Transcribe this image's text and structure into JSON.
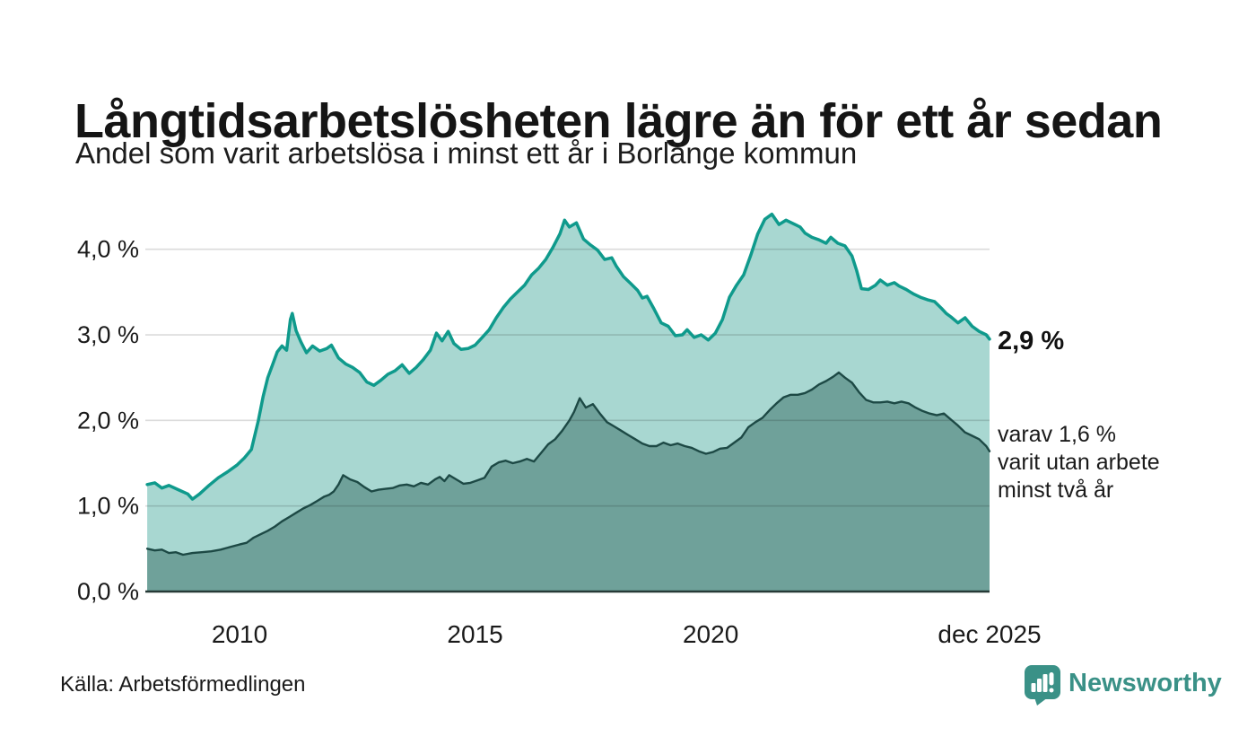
{
  "header": {
    "title": "Långtidsarbetslösheten lägre än för ett år sedan",
    "subtitle": "Andel som varit arbetslösa i minst ett år i Borlänge kommun"
  },
  "annotations": {
    "latest_total": "2,9 %",
    "subset": "varav 1,6 %\nvarit utan arbete\nminst två år"
  },
  "footer": {
    "source": "Källa: Arbetsförmedlingen",
    "brand": "Newsworthy"
  },
  "colors": {
    "line_total": "#0f9a8c",
    "fill_total": "#a8d7d1",
    "line_subset": "#1d4945",
    "fill_subset": "#6fa19a",
    "gridline": "rgba(0,0,0,0.14)",
    "baseline": "#263a37",
    "text": "#1a1a1a",
    "brand_teal": "#3a9187"
  },
  "chart_data": {
    "type": "area",
    "title": "Långtidsarbetslösheten lägre än för ett år sedan",
    "subtitle": "Andel som varit arbetslösa i minst ett år i Borlänge kommun",
    "xlabel": "",
    "ylabel": "",
    "x_range": [
      2008.0,
      2025.92
    ],
    "y_range": [
      0,
      4.49
    ],
    "grid": true,
    "legend_position": "end-labels-right",
    "y_ticks": [
      {
        "v": 0,
        "label": "0,0 %"
      },
      {
        "v": 1,
        "label": "1,0 %"
      },
      {
        "v": 2,
        "label": "2,0 %"
      },
      {
        "v": 3,
        "label": "3,0 %"
      },
      {
        "v": 4,
        "label": "4,0 %"
      }
    ],
    "x_ticks": [
      {
        "x": 2010,
        "label": "2010"
      },
      {
        "x": 2015,
        "label": "2015"
      },
      {
        "x": 2020,
        "label": "2020"
      },
      {
        "x": 2025.92,
        "label": "dec 2025"
      }
    ],
    "series": [
      {
        "name": "Andel som varit arbetslösa i minst ett år",
        "end_label": "2,9 %",
        "points": [
          [
            2008.04,
            1.25
          ],
          [
            2008.2,
            1.27
          ],
          [
            2008.35,
            1.21
          ],
          [
            2008.5,
            1.24
          ],
          [
            2008.7,
            1.19
          ],
          [
            2008.9,
            1.14
          ],
          [
            2009.0,
            1.08
          ],
          [
            2009.15,
            1.14
          ],
          [
            2009.35,
            1.24
          ],
          [
            2009.55,
            1.33
          ],
          [
            2009.75,
            1.4
          ],
          [
            2009.95,
            1.48
          ],
          [
            2010.1,
            1.56
          ],
          [
            2010.25,
            1.66
          ],
          [
            2010.4,
            2.0
          ],
          [
            2010.5,
            2.28
          ],
          [
            2010.6,
            2.5
          ],
          [
            2010.7,
            2.65
          ],
          [
            2010.8,
            2.8
          ],
          [
            2010.9,
            2.87
          ],
          [
            2011.0,
            2.82
          ],
          [
            2011.08,
            3.18
          ],
          [
            2011.12,
            3.25
          ],
          [
            2011.2,
            3.05
          ],
          [
            2011.3,
            2.92
          ],
          [
            2011.42,
            2.79
          ],
          [
            2011.55,
            2.87
          ],
          [
            2011.7,
            2.81
          ],
          [
            2011.85,
            2.84
          ],
          [
            2011.95,
            2.88
          ],
          [
            2012.1,
            2.73
          ],
          [
            2012.25,
            2.66
          ],
          [
            2012.4,
            2.62
          ],
          [
            2012.55,
            2.56
          ],
          [
            2012.7,
            2.45
          ],
          [
            2012.85,
            2.41
          ],
          [
            2013.0,
            2.47
          ],
          [
            2013.15,
            2.54
          ],
          [
            2013.3,
            2.58
          ],
          [
            2013.45,
            2.65
          ],
          [
            2013.6,
            2.55
          ],
          [
            2013.75,
            2.62
          ],
          [
            2013.9,
            2.71
          ],
          [
            2014.05,
            2.82
          ],
          [
            2014.18,
            3.02
          ],
          [
            2014.3,
            2.93
          ],
          [
            2014.43,
            3.04
          ],
          [
            2014.55,
            2.9
          ],
          [
            2014.7,
            2.83
          ],
          [
            2014.85,
            2.84
          ],
          [
            2015.0,
            2.88
          ],
          [
            2015.15,
            2.97
          ],
          [
            2015.3,
            3.06
          ],
          [
            2015.45,
            3.2
          ],
          [
            2015.6,
            3.32
          ],
          [
            2015.75,
            3.42
          ],
          [
            2015.9,
            3.5
          ],
          [
            2016.05,
            3.58
          ],
          [
            2016.2,
            3.7
          ],
          [
            2016.35,
            3.78
          ],
          [
            2016.5,
            3.88
          ],
          [
            2016.65,
            4.02
          ],
          [
            2016.8,
            4.18
          ],
          [
            2016.9,
            4.34
          ],
          [
            2017.0,
            4.26
          ],
          [
            2017.15,
            4.31
          ],
          [
            2017.3,
            4.12
          ],
          [
            2017.45,
            4.05
          ],
          [
            2017.6,
            3.99
          ],
          [
            2017.75,
            3.88
          ],
          [
            2017.9,
            3.9
          ],
          [
            2018.0,
            3.8
          ],
          [
            2018.15,
            3.68
          ],
          [
            2018.3,
            3.6
          ],
          [
            2018.45,
            3.52
          ],
          [
            2018.55,
            3.43
          ],
          [
            2018.65,
            3.45
          ],
          [
            2018.8,
            3.3
          ],
          [
            2018.95,
            3.14
          ],
          [
            2019.1,
            3.1
          ],
          [
            2019.25,
            2.99
          ],
          [
            2019.4,
            3.0
          ],
          [
            2019.5,
            3.06
          ],
          [
            2019.65,
            2.97
          ],
          [
            2019.8,
            3.0
          ],
          [
            2019.95,
            2.94
          ],
          [
            2020.1,
            3.02
          ],
          [
            2020.25,
            3.18
          ],
          [
            2020.4,
            3.44
          ],
          [
            2020.55,
            3.58
          ],
          [
            2020.7,
            3.7
          ],
          [
            2020.85,
            3.93
          ],
          [
            2021.0,
            4.18
          ],
          [
            2021.15,
            4.35
          ],
          [
            2021.3,
            4.41
          ],
          [
            2021.45,
            4.29
          ],
          [
            2021.6,
            4.34
          ],
          [
            2021.75,
            4.3
          ],
          [
            2021.9,
            4.26
          ],
          [
            2022.0,
            4.19
          ],
          [
            2022.15,
            4.14
          ],
          [
            2022.3,
            4.11
          ],
          [
            2022.45,
            4.07
          ],
          [
            2022.55,
            4.14
          ],
          [
            2022.7,
            4.07
          ],
          [
            2022.85,
            4.04
          ],
          [
            2023.0,
            3.92
          ],
          [
            2023.1,
            3.75
          ],
          [
            2023.2,
            3.54
          ],
          [
            2023.35,
            3.53
          ],
          [
            2023.5,
            3.58
          ],
          [
            2023.6,
            3.64
          ],
          [
            2023.75,
            3.58
          ],
          [
            2023.9,
            3.61
          ],
          [
            2024.0,
            3.57
          ],
          [
            2024.15,
            3.53
          ],
          [
            2024.3,
            3.48
          ],
          [
            2024.45,
            3.44
          ],
          [
            2024.6,
            3.41
          ],
          [
            2024.75,
            3.39
          ],
          [
            2024.9,
            3.31
          ],
          [
            2025.0,
            3.25
          ],
          [
            2025.1,
            3.21
          ],
          [
            2025.25,
            3.14
          ],
          [
            2025.4,
            3.2
          ],
          [
            2025.55,
            3.1
          ],
          [
            2025.7,
            3.04
          ],
          [
            2025.85,
            3.0
          ],
          [
            2025.92,
            2.95
          ]
        ]
      },
      {
        "name": "varav utan arbete minst två år",
        "end_label": "varav 1,6 % varit utan arbete minst två år",
        "points": [
          [
            2008.04,
            0.5
          ],
          [
            2008.2,
            0.48
          ],
          [
            2008.35,
            0.49
          ],
          [
            2008.5,
            0.45
          ],
          [
            2008.65,
            0.46
          ],
          [
            2008.8,
            0.43
          ],
          [
            2009.0,
            0.45
          ],
          [
            2009.2,
            0.46
          ],
          [
            2009.4,
            0.47
          ],
          [
            2009.6,
            0.49
          ],
          [
            2009.8,
            0.52
          ],
          [
            2010.0,
            0.55
          ],
          [
            2010.15,
            0.57
          ],
          [
            2010.3,
            0.63
          ],
          [
            2010.45,
            0.67
          ],
          [
            2010.6,
            0.71
          ],
          [
            2010.75,
            0.76
          ],
          [
            2010.9,
            0.82
          ],
          [
            2011.05,
            0.87
          ],
          [
            2011.2,
            0.92
          ],
          [
            2011.35,
            0.97
          ],
          [
            2011.5,
            1.01
          ],
          [
            2011.65,
            1.06
          ],
          [
            2011.8,
            1.11
          ],
          [
            2011.9,
            1.13
          ],
          [
            2012.0,
            1.17
          ],
          [
            2012.1,
            1.25
          ],
          [
            2012.2,
            1.36
          ],
          [
            2012.35,
            1.31
          ],
          [
            2012.5,
            1.28
          ],
          [
            2012.65,
            1.22
          ],
          [
            2012.8,
            1.17
          ],
          [
            2012.95,
            1.19
          ],
          [
            2013.1,
            1.2
          ],
          [
            2013.25,
            1.21
          ],
          [
            2013.4,
            1.24
          ],
          [
            2013.55,
            1.25
          ],
          [
            2013.7,
            1.23
          ],
          [
            2013.85,
            1.27
          ],
          [
            2014.0,
            1.25
          ],
          [
            2014.15,
            1.31
          ],
          [
            2014.25,
            1.34
          ],
          [
            2014.35,
            1.29
          ],
          [
            2014.45,
            1.36
          ],
          [
            2014.6,
            1.31
          ],
          [
            2014.75,
            1.26
          ],
          [
            2014.9,
            1.27
          ],
          [
            2015.05,
            1.3
          ],
          [
            2015.2,
            1.33
          ],
          [
            2015.35,
            1.46
          ],
          [
            2015.5,
            1.51
          ],
          [
            2015.65,
            1.53
          ],
          [
            2015.8,
            1.5
          ],
          [
            2015.95,
            1.52
          ],
          [
            2016.1,
            1.55
          ],
          [
            2016.25,
            1.52
          ],
          [
            2016.4,
            1.62
          ],
          [
            2016.55,
            1.72
          ],
          [
            2016.7,
            1.78
          ],
          [
            2016.85,
            1.88
          ],
          [
            2017.0,
            2.0
          ],
          [
            2017.1,
            2.1
          ],
          [
            2017.22,
            2.26
          ],
          [
            2017.35,
            2.15
          ],
          [
            2017.5,
            2.19
          ],
          [
            2017.65,
            2.08
          ],
          [
            2017.8,
            1.98
          ],
          [
            2017.95,
            1.93
          ],
          [
            2018.1,
            1.88
          ],
          [
            2018.25,
            1.83
          ],
          [
            2018.4,
            1.78
          ],
          [
            2018.55,
            1.73
          ],
          [
            2018.7,
            1.7
          ],
          [
            2018.85,
            1.7
          ],
          [
            2019.0,
            1.74
          ],
          [
            2019.15,
            1.71
          ],
          [
            2019.3,
            1.73
          ],
          [
            2019.45,
            1.7
          ],
          [
            2019.6,
            1.68
          ],
          [
            2019.75,
            1.64
          ],
          [
            2019.9,
            1.61
          ],
          [
            2020.05,
            1.63
          ],
          [
            2020.2,
            1.67
          ],
          [
            2020.35,
            1.68
          ],
          [
            2020.5,
            1.74
          ],
          [
            2020.65,
            1.8
          ],
          [
            2020.8,
            1.92
          ],
          [
            2020.95,
            1.98
          ],
          [
            2021.1,
            2.03
          ],
          [
            2021.25,
            2.12
          ],
          [
            2021.4,
            2.2
          ],
          [
            2021.55,
            2.27
          ],
          [
            2021.7,
            2.3
          ],
          [
            2021.85,
            2.3
          ],
          [
            2022.0,
            2.32
          ],
          [
            2022.15,
            2.36
          ],
          [
            2022.3,
            2.42
          ],
          [
            2022.45,
            2.46
          ],
          [
            2022.6,
            2.51
          ],
          [
            2022.72,
            2.56
          ],
          [
            2022.85,
            2.5
          ],
          [
            2023.0,
            2.44
          ],
          [
            2023.15,
            2.33
          ],
          [
            2023.3,
            2.24
          ],
          [
            2023.45,
            2.21
          ],
          [
            2023.6,
            2.21
          ],
          [
            2023.75,
            2.22
          ],
          [
            2023.9,
            2.2
          ],
          [
            2024.05,
            2.22
          ],
          [
            2024.2,
            2.2
          ],
          [
            2024.35,
            2.15
          ],
          [
            2024.5,
            2.11
          ],
          [
            2024.65,
            2.08
          ],
          [
            2024.8,
            2.06
          ],
          [
            2024.95,
            2.08
          ],
          [
            2025.1,
            2.01
          ],
          [
            2025.25,
            1.94
          ],
          [
            2025.4,
            1.86
          ],
          [
            2025.55,
            1.82
          ],
          [
            2025.7,
            1.78
          ],
          [
            2025.85,
            1.7
          ],
          [
            2025.92,
            1.64
          ]
        ]
      }
    ]
  }
}
